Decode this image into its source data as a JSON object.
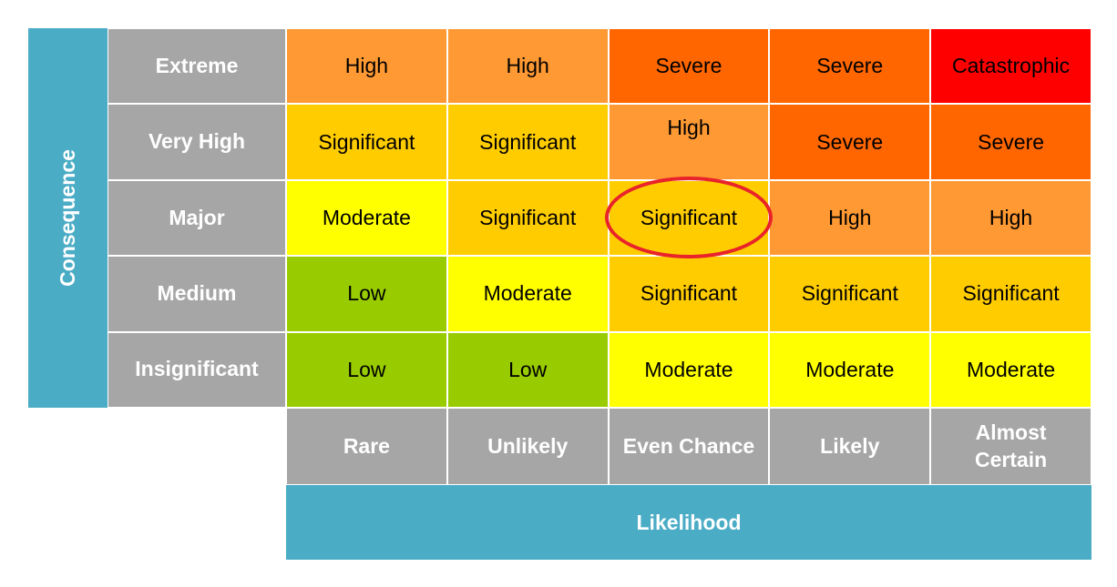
{
  "consequence_label": "Consequence",
  "likelihood_label": "Likelihood",
  "colors": {
    "axis_bar": "#4bacc6",
    "header": "#a6a6a6",
    "Low": "#99cc00",
    "Moderate": "#ffff00",
    "Significant": "#ffcc00",
    "High": "#ff9933",
    "Severe": "#ff6600",
    "Catastrophic": "#ff0000",
    "highlight_ring": "#e8232a"
  },
  "consequences": [
    "Extreme",
    "Very High",
    "Major",
    "Medium",
    "Insignificant"
  ],
  "likelihoods": [
    "Rare",
    "Unlikely",
    "Even Chance",
    "Likely",
    "Almost\nCertain"
  ],
  "grid": [
    [
      "High",
      "High",
      "Severe",
      "Severe",
      "Catastrophic"
    ],
    [
      "Significant",
      "Significant",
      "High",
      "Severe",
      "Severe"
    ],
    [
      "Moderate",
      "Significant",
      "Significant",
      "High",
      "High"
    ],
    [
      "Low",
      "Moderate",
      "Significant",
      "Significant",
      "Significant"
    ],
    [
      "Low",
      "Low",
      "Moderate",
      "Moderate",
      "Moderate"
    ]
  ],
  "highlighted_cell": {
    "row": 2,
    "col": 2
  }
}
